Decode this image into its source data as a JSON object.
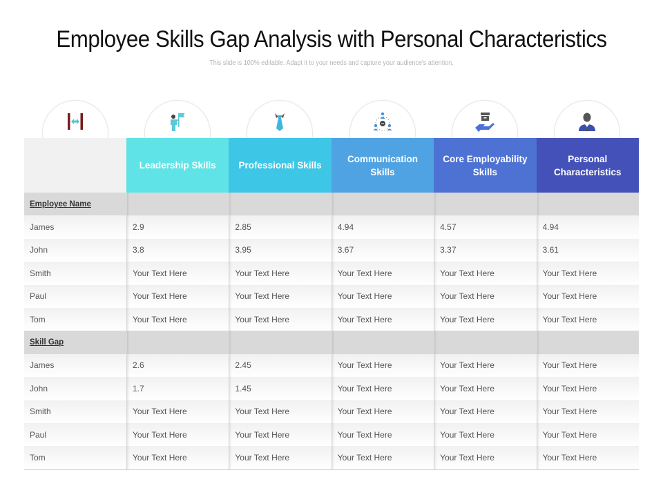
{
  "slide": {
    "title": "Employee Skills Gap Analysis with Personal Characteristics",
    "subtitle": "This slide is 100% editable. Adapt it to your needs and capture your audience's attention."
  },
  "icons": [
    {
      "name": "gap-arrows-icon",
      "color": "#7b1a1a",
      "accent": "#4cc9d6"
    },
    {
      "name": "leader-flag-icon",
      "color": "#5cc8d8"
    },
    {
      "name": "tie-icon",
      "color": "#3fb6e0"
    },
    {
      "name": "communication-network-icon",
      "color": "#4a90d9"
    },
    {
      "name": "hand-box-icon",
      "color": "#4a72d6"
    },
    {
      "name": "businessman-icon",
      "color": "#3c4fb0"
    }
  ],
  "table": {
    "headers": [
      {
        "label": "",
        "color": "#f1f1f1"
      },
      {
        "label": "Leadership Skills",
        "color": "#5fe3e6"
      },
      {
        "label": "Professional Skills",
        "color": "#3ec6e6"
      },
      {
        "label": "Communication Skills",
        "color": "#4fa3e3"
      },
      {
        "label": "Core Employability Skills",
        "color": "#4d72d4"
      },
      {
        "label": "Personal Characteristics",
        "color": "#4451b8"
      }
    ],
    "sections": [
      {
        "label": "Employee Name",
        "rows": [
          [
            "James",
            "2.9",
            "2.85",
            "4.94",
            "4.57",
            "4.94"
          ],
          [
            "John",
            "3.8",
            "3.95",
            "3.67",
            "3.37",
            "3.61"
          ],
          [
            "Smith",
            "Your Text Here",
            "Your Text Here",
            "Your Text Here",
            "Your Text Here",
            "Your Text Here"
          ],
          [
            "Paul",
            "Your Text Here",
            "Your Text Here",
            "Your Text Here",
            "Your Text Here",
            "Your Text Here"
          ],
          [
            "Tom",
            "Your Text Here",
            "Your Text Here",
            "Your Text Here",
            "Your Text Here",
            "Your Text Here"
          ]
        ]
      },
      {
        "label": "Skill Gap",
        "rows": [
          [
            "James",
            "2.6",
            "2.45",
            "Your Text Here",
            "Your Text Here",
            "Your Text Here"
          ],
          [
            "John",
            "1.7",
            "1.45",
            "Your Text Here",
            "Your Text Here",
            "Your Text Here"
          ],
          [
            "Smith",
            "Your Text Here",
            "Your Text Here",
            "Your Text Here",
            "Your Text Here",
            "Your Text Here"
          ],
          [
            "Paul",
            "Your Text Here",
            "Your Text Here",
            "Your Text Here",
            "Your Text Here",
            "Your Text Here"
          ],
          [
            "Tom",
            "Your Text Here",
            "Your Text Here",
            "Your Text Here",
            "Your Text Here",
            "Your Text Here"
          ]
        ]
      }
    ]
  }
}
